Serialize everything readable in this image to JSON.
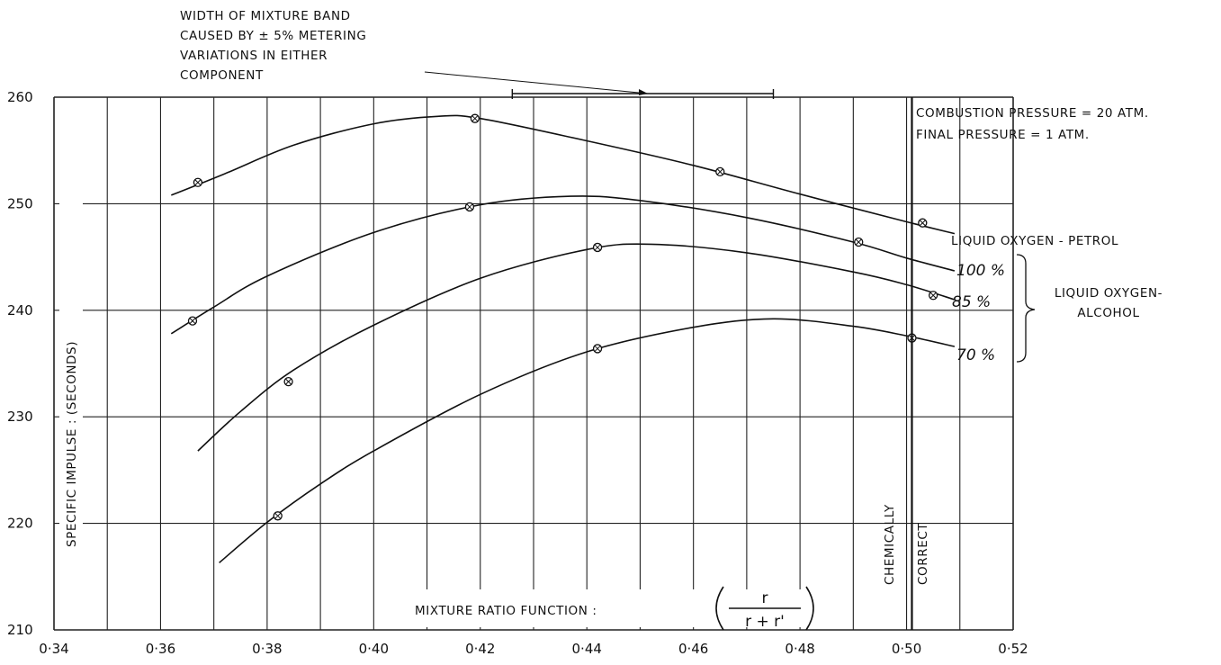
{
  "chart_data": {
    "type": "line",
    "xlim": [
      0.34,
      0.52
    ],
    "ylim": [
      210,
      260
    ],
    "x_ticks": [
      "0·34",
      "0·36",
      "0·38",
      "0·40",
      "0·42",
      "0·44",
      "0·46",
      "0·48",
      "0·50",
      "0·52"
    ],
    "y_ticks": [
      "210",
      "220",
      "230",
      "240",
      "250",
      "260"
    ],
    "grid": true,
    "xlabel": "MIXTURE RATIO FUNCTION :",
    "xlabel_fraction": {
      "numerator": "r",
      "denominator": "r + r'"
    },
    "ylabel": "SPECIFIC IMPULSE : (SECONDS)",
    "conditions": [
      "COMBUSTION PRESSURE = 20 ATM.",
      "FINAL PRESSURE = 1 ATM."
    ],
    "band_note": [
      "WIDTH OF MIXTURE BAND",
      "CAUSED BY ± 5% METERING",
      "VARIATIONS IN EITHER",
      "COMPONENT"
    ],
    "band_range": [
      0.426,
      0.475
    ],
    "chemically_correct_label": [
      "CHEMICALLY",
      "CORRECT"
    ],
    "chemically_correct_x": 0.501,
    "group_label": [
      "LIQUID OXYGEN-",
      "ALCOHOL"
    ],
    "series": [
      {
        "name": "LIQUID OXYGEN - PETROL",
        "x": [
          0.362,
          0.372,
          0.385,
          0.4,
          0.412,
          0.42,
          0.44,
          0.46,
          0.48,
          0.5,
          0.509
        ],
        "y": [
          250.8,
          252.8,
          255.5,
          257.5,
          258.2,
          258.0,
          255.9,
          253.6,
          250.9,
          248.3,
          247.2
        ],
        "markers": [
          [
            0.367,
            252.0
          ],
          [
            0.419,
            258.0
          ],
          [
            0.465,
            253.0
          ],
          [
            0.503,
            248.2
          ]
        ]
      },
      {
        "name": "100 %",
        "x": [
          0.362,
          0.37,
          0.38,
          0.4,
          0.42,
          0.437,
          0.45,
          0.47,
          0.49,
          0.5,
          0.509
        ],
        "y": [
          237.8,
          240.3,
          243.2,
          247.3,
          249.9,
          250.7,
          250.3,
          248.7,
          246.4,
          244.9,
          243.7
        ],
        "markers": [
          [
            0.366,
            239.0
          ],
          [
            0.418,
            249.7
          ],
          [
            0.491,
            246.4
          ]
        ]
      },
      {
        "name": "85 %",
        "x": [
          0.367,
          0.375,
          0.385,
          0.4,
          0.42,
          0.44,
          0.452,
          0.47,
          0.49,
          0.5,
          0.509
        ],
        "y": [
          226.8,
          230.5,
          234.4,
          238.6,
          243.0,
          245.7,
          246.2,
          245.4,
          243.6,
          242.4,
          241.0
        ],
        "markers": [
          [
            0.384,
            233.3
          ],
          [
            0.442,
            245.9
          ],
          [
            0.505,
            241.4
          ]
        ]
      },
      {
        "name": "70 %",
        "x": [
          0.371,
          0.38,
          0.39,
          0.4,
          0.42,
          0.44,
          0.46,
          0.475,
          0.49,
          0.5,
          0.509
        ],
        "y": [
          216.3,
          220.1,
          223.7,
          226.8,
          232.1,
          236.1,
          238.4,
          239.2,
          238.5,
          237.6,
          236.6
        ],
        "markers": [
          [
            0.382,
            220.7
          ],
          [
            0.442,
            236.4
          ],
          [
            0.501,
            237.4
          ]
        ]
      }
    ]
  }
}
